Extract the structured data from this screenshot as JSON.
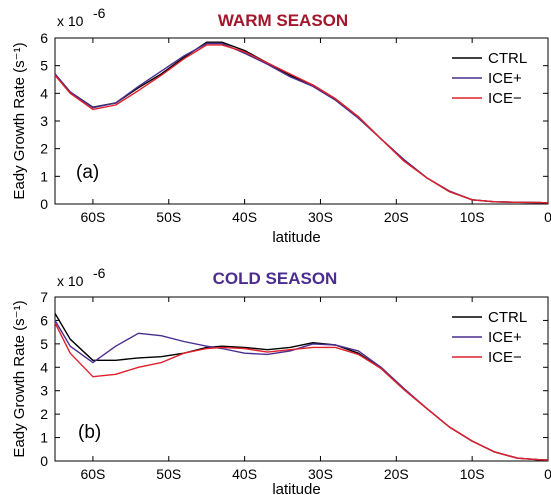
{
  "colors": {
    "CTRL": "#000000",
    "ICE+": "#4b2d8f",
    "ICE-": "#e0202a",
    "title_warm": "#a3162b",
    "title_cold": "#4b2d8f"
  },
  "chart_data": [
    {
      "type": "line",
      "title": "WARM SEASON",
      "panel_label": "(a)",
      "xlabel": "latitude",
      "ylabel": "Eady Growth Rate (s⁻¹)",
      "y_multiplier": "x 10",
      "y_multiplier_exp": "-6",
      "xlim": [
        -65,
        0
      ],
      "ylim": [
        0,
        6
      ],
      "x_ticks": [
        -60,
        -50,
        -40,
        -30,
        -20,
        -10,
        0
      ],
      "x_tick_labels": [
        "60S",
        "50S",
        "40S",
        "30S",
        "20S",
        "10S",
        "0"
      ],
      "y_ticks": [
        0,
        1,
        2,
        3,
        4,
        5,
        6
      ],
      "y_tick_labels": [
        "0",
        "1",
        "2",
        "3",
        "4",
        "5",
        "6"
      ],
      "legend_position": "top-right",
      "x": [
        -65,
        -63,
        -60,
        -57,
        -54,
        -51,
        -48,
        -45,
        -43,
        -40,
        -37,
        -34,
        -31,
        -28,
        -25,
        -22,
        -19,
        -16,
        -13,
        -10,
        -7,
        -4,
        -1,
        0
      ],
      "series": [
        {
          "name": "CTRL",
          "values": [
            4.7,
            4.05,
            3.5,
            3.65,
            4.2,
            4.7,
            5.3,
            5.85,
            5.85,
            5.55,
            5.1,
            4.65,
            4.3,
            3.8,
            3.15,
            2.35,
            1.6,
            0.95,
            0.45,
            0.15,
            0.08,
            0.06,
            0.05,
            0.04
          ]
        },
        {
          "name": "ICE+",
          "values": [
            4.7,
            4.05,
            3.48,
            3.65,
            4.25,
            4.8,
            5.35,
            5.8,
            5.8,
            5.45,
            5.05,
            4.6,
            4.25,
            3.75,
            3.1,
            2.35,
            1.6,
            0.95,
            0.47,
            0.15,
            0.08,
            0.06,
            0.05,
            0.04
          ]
        },
        {
          "name": "ICE−",
          "values": [
            4.65,
            4.0,
            3.42,
            3.58,
            4.1,
            4.65,
            5.25,
            5.75,
            5.75,
            5.5,
            5.1,
            4.7,
            4.3,
            3.8,
            3.15,
            2.35,
            1.55,
            0.95,
            0.45,
            0.15,
            0.08,
            0.06,
            0.05,
            0.04
          ]
        }
      ]
    },
    {
      "type": "line",
      "title": "COLD SEASON",
      "panel_label": "(b)",
      "xlabel": "latitude",
      "ylabel": "Eady Growth Rate (s⁻¹)",
      "y_multiplier": "x 10",
      "y_multiplier_exp": "-6",
      "xlim": [
        -65,
        0
      ],
      "ylim": [
        0,
        7
      ],
      "x_ticks": [
        -60,
        -50,
        -40,
        -30,
        -20,
        -10,
        0
      ],
      "x_tick_labels": [
        "60S",
        "50S",
        "40S",
        "30S",
        "20S",
        "10S",
        "0"
      ],
      "y_ticks": [
        0,
        1,
        2,
        3,
        4,
        5,
        6,
        7
      ],
      "y_tick_labels": [
        "0",
        "1",
        "2",
        "3",
        "4",
        "5",
        "6",
        "7"
      ],
      "legend_position": "top-right",
      "x": [
        -65,
        -63,
        -60,
        -57,
        -54,
        -51,
        -48,
        -45,
        -43,
        -40,
        -37,
        -34,
        -31,
        -28,
        -25,
        -22,
        -19,
        -16,
        -13,
        -10,
        -7,
        -4,
        -1,
        0
      ],
      "series": [
        {
          "name": "CTRL",
          "values": [
            6.3,
            5.2,
            4.3,
            4.3,
            4.4,
            4.45,
            4.6,
            4.85,
            4.9,
            4.85,
            4.75,
            4.85,
            5.05,
            4.95,
            4.6,
            3.95,
            3.05,
            2.25,
            1.45,
            0.85,
            0.38,
            0.12,
            0.05,
            0.04
          ]
        },
        {
          "name": "ICE+",
          "values": [
            6.0,
            4.9,
            4.2,
            4.9,
            5.45,
            5.35,
            5.1,
            4.9,
            4.8,
            4.6,
            4.55,
            4.7,
            5.0,
            4.95,
            4.7,
            4.0,
            3.1,
            2.25,
            1.45,
            0.85,
            0.38,
            0.12,
            0.05,
            0.04
          ]
        },
        {
          "name": "ICE−",
          "values": [
            5.9,
            4.6,
            3.6,
            3.7,
            4.0,
            4.2,
            4.6,
            4.8,
            4.85,
            4.8,
            4.65,
            4.75,
            4.85,
            4.85,
            4.55,
            3.95,
            3.05,
            2.25,
            1.45,
            0.85,
            0.38,
            0.12,
            0.05,
            0.04
          ]
        }
      ]
    }
  ]
}
